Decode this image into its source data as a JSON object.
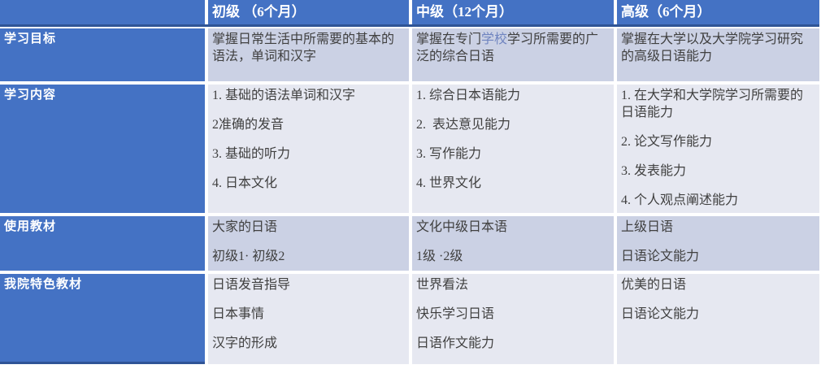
{
  "colors": {
    "accent_blue": "#4472C4",
    "divider_navy": "#2F5496",
    "band_lavender": "#CBD1E4",
    "band_light": "#E6E8F1",
    "body_text": "#404040",
    "header_text": "#FFFFFF",
    "highlight_text": "#7085C0"
  },
  "table": {
    "columns": [
      {
        "label": ""
      },
      {
        "label": "初级 （6个月）"
      },
      {
        "label": "中级（12个月）"
      },
      {
        "label": "高级（6个月）"
      }
    ],
    "rows": [
      {
        "label": "学习目标",
        "cells": [
          {
            "paragraphs": [
              "掌握日常生活中所需要的基本的语法，单词和汉字"
            ]
          },
          {
            "paragraphs": [
              [
                {
                  "text": "掌握在专门"
                },
                {
                  "text": "学校",
                  "color": "#7085C0"
                },
                {
                  "text": "学习所需要的广泛的综合日语"
                }
              ]
            ]
          },
          {
            "paragraphs": [
              "掌握在大学以及大学院学习研究的高级日语能力"
            ]
          }
        ]
      },
      {
        "label": "学习内容",
        "cells": [
          {
            "paragraphs": [
              "1. 基础的语法单词和汉字",
              "2准确的发音",
              "3. 基础的听力",
              "4. 日本文化"
            ]
          },
          {
            "paragraphs": [
              "1. 综合日本语能力",
              "2.  表达意见能力",
              "3. 写作能力",
              "4. 世界文化"
            ]
          },
          {
            "paragraphs": [
              "1. 在大学和大学院学习所需要的日语能力",
              "2. 论文写作能力",
              "3. 发表能力",
              "4. 个人观点阐述能力"
            ]
          }
        ]
      },
      {
        "label": "使用教材",
        "cells": [
          {
            "paragraphs": [
              "大家的日语",
              "初级1· 初级2"
            ]
          },
          {
            "paragraphs": [
              "文化中级日本语",
              "1级 ·2级"
            ]
          },
          {
            "paragraphs": [
              "上级日语",
              "日语论文能力"
            ]
          }
        ]
      },
      {
        "label": "我院特色教材",
        "cells": [
          {
            "paragraphs": [
              "日语发音指导",
              "日本事情",
              "汉字的形成"
            ]
          },
          {
            "paragraphs": [
              "世界看法",
              "快乐学习日语",
              "日语作文能力"
            ]
          },
          {
            "paragraphs": [
              "优美的日语",
              "日语论文能力"
            ]
          }
        ]
      }
    ]
  }
}
